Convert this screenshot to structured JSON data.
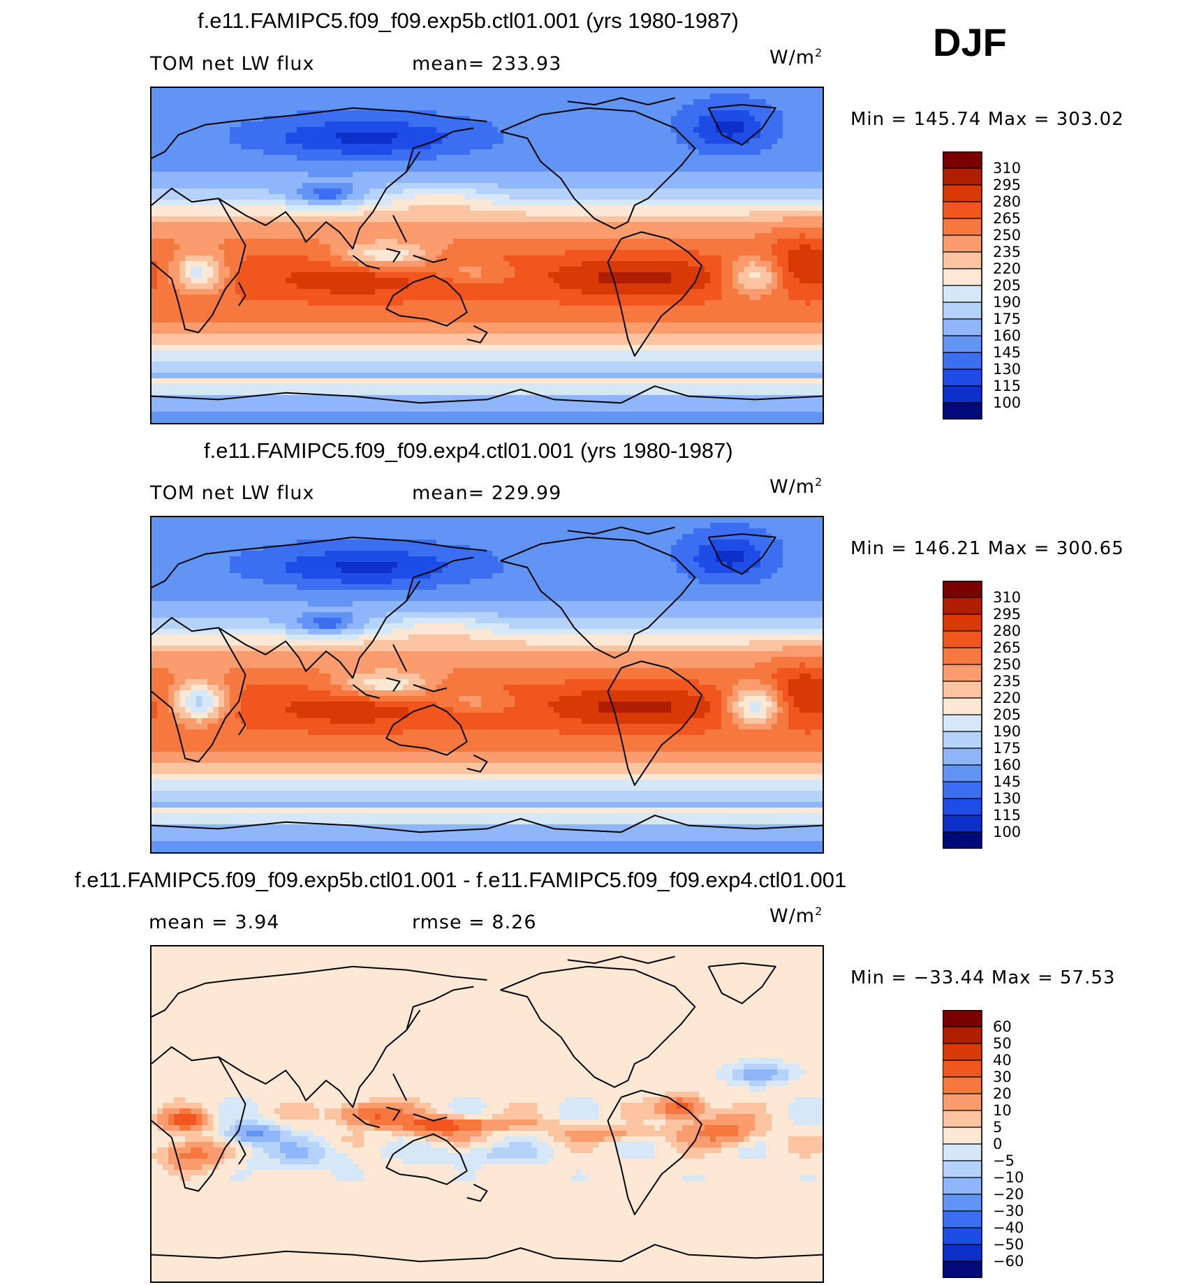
{
  "season": "DJF",
  "units_base": "W/m",
  "units_exp": "2",
  "panels": [
    {
      "title": "f.e11.FAMIPC5.f09_f09.exp5b.ctl01.001 (yrs 1980-1987)",
      "left_label": "TOM net LW flux",
      "mean_label": "mean= 233.93",
      "minmax": "Min = 145.74 Max = 303.02",
      "scheme": "abs"
    },
    {
      "title": "f.e11.FAMIPC5.f09_f09.exp4.ctl01.001 (yrs 1980-1987)",
      "left_label": "TOM net LW flux",
      "mean_label": "mean= 229.99",
      "minmax": "Min = 146.21 Max = 300.65",
      "scheme": "abs"
    },
    {
      "title": "f.e11.FAMIPC5.f09_f09.exp5b.ctl01.001 - f.e11.FAMIPC5.f09_f09.exp4.ctl01.001",
      "left_label": "mean =    3.94",
      "mean_label": "rmse =    8.26",
      "minmax": "Min = −33.44 Max =  57.53",
      "scheme": "diff"
    }
  ],
  "chart_data": [
    {
      "type": "heatmap",
      "title": "f.e11.FAMIPC5.f09_f09.exp5b.ctl01.001 (yrs 1980-1987)",
      "variable": "TOM net LW flux",
      "units": "W/m2",
      "mean": 233.93,
      "min": 145.74,
      "max": 303.02,
      "colorbar_levels": [
        310,
        295,
        280,
        265,
        250,
        235,
        220,
        205,
        190,
        175,
        160,
        145,
        130,
        115,
        100
      ],
      "colorbar_colors": [
        "#7a0000",
        "#b01e00",
        "#d93a05",
        "#f0561e",
        "#f7783e",
        "#fb9c6e",
        "#fdc4a2",
        "#fde8d6",
        "#d6e8f8",
        "#b5d2fa",
        "#8fb5fa",
        "#6194f5",
        "#3b6ef0",
        "#1e4ce6",
        "#0c30c9",
        "#020a7a"
      ]
    },
    {
      "type": "heatmap",
      "title": "f.e11.FAMIPC5.f09_f09.exp4.ctl01.001 (yrs 1980-1987)",
      "variable": "TOM net LW flux",
      "units": "W/m2",
      "mean": 229.99,
      "min": 146.21,
      "max": 300.65,
      "colorbar_levels": [
        310,
        295,
        280,
        265,
        250,
        235,
        220,
        205,
        190,
        175,
        160,
        145,
        130,
        115,
        100
      ],
      "colorbar_colors": [
        "#7a0000",
        "#b01e00",
        "#d93a05",
        "#f0561e",
        "#f7783e",
        "#fb9c6e",
        "#fdc4a2",
        "#fde8d6",
        "#d6e8f8",
        "#b5d2fa",
        "#8fb5fa",
        "#6194f5",
        "#3b6ef0",
        "#1e4ce6",
        "#0c30c9",
        "#020a7a"
      ]
    },
    {
      "type": "heatmap",
      "title": "f.e11.FAMIPC5.f09_f09.exp5b.ctl01.001 - f.e11.FAMIPC5.f09_f09.exp4.ctl01.001",
      "units": "W/m2",
      "mean": 3.94,
      "rmse": 8.26,
      "min": -33.44,
      "max": 57.53,
      "colorbar_levels": [
        "60",
        "50",
        "40",
        "30",
        "20",
        "10",
        "5",
        "0",
        "−5",
        "−10",
        "−20",
        "−30",
        "−40",
        "−50",
        "−60"
      ],
      "colorbar_colors": [
        "#7a0000",
        "#b01e00",
        "#d93a05",
        "#f0561e",
        "#f7783e",
        "#fb9c6e",
        "#fdc4a2",
        "#fde8d6",
        "#d6e8f8",
        "#b5d2fa",
        "#8fb5fa",
        "#6194f5",
        "#3b6ef0",
        "#1e4ce6",
        "#0c30c9",
        "#020a7a"
      ]
    }
  ]
}
